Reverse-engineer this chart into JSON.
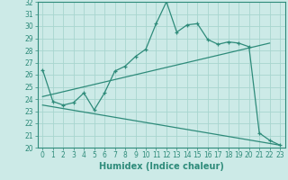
{
  "xlabel": "Humidex (Indice chaleur)",
  "bg_color": "#cceae7",
  "line_color": "#2e8b7a",
  "grid_color": "#a8d5cf",
  "xlim": [
    -0.5,
    23.5
  ],
  "ylim": [
    20,
    32
  ],
  "xtick_vals": [
    0,
    1,
    2,
    3,
    4,
    5,
    6,
    7,
    8,
    9,
    10,
    11,
    12,
    13,
    14,
    15,
    16,
    17,
    18,
    19,
    20,
    21,
    22,
    23
  ],
  "ytick_vals": [
    20,
    21,
    22,
    23,
    24,
    25,
    26,
    27,
    28,
    29,
    30,
    31,
    32
  ],
  "main_x": [
    0,
    1,
    2,
    3,
    4,
    5,
    6,
    7,
    8,
    9,
    10,
    11,
    12,
    13,
    14,
    15,
    16,
    17,
    18,
    19,
    20,
    21,
    22,
    23
  ],
  "main_y": [
    26.4,
    23.8,
    23.5,
    23.7,
    24.5,
    23.1,
    24.5,
    26.3,
    26.7,
    27.5,
    28.1,
    30.2,
    32.0,
    29.5,
    30.1,
    30.2,
    28.9,
    28.5,
    28.7,
    28.6,
    28.3,
    21.2,
    20.6,
    20.2
  ],
  "line1_x": [
    0,
    22
  ],
  "line1_y": [
    24.2,
    28.6
  ],
  "line2_x": [
    0,
    23
  ],
  "line2_y": [
    23.5,
    20.2
  ],
  "xlabel_fontsize": 7,
  "tick_fontsize": 5.5
}
